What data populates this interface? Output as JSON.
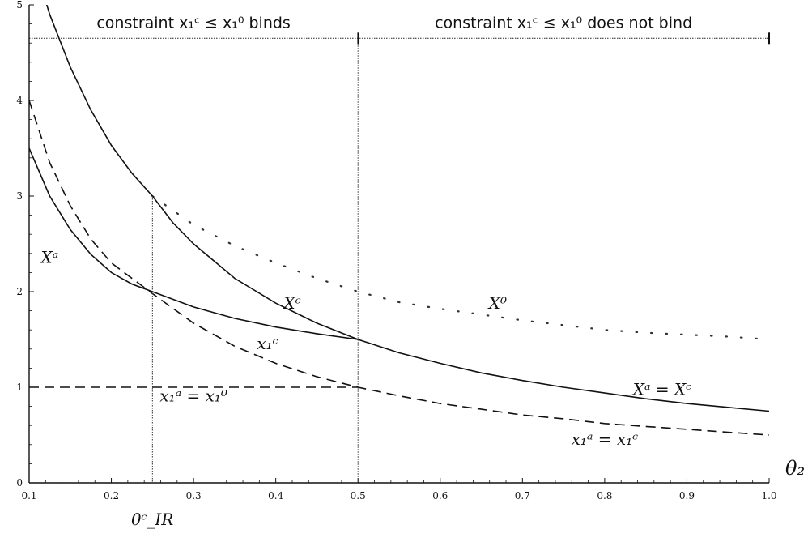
{
  "chart_data": {
    "type": "line",
    "xlabel": "θ₂",
    "ylabel": "",
    "xlim": [
      0.1,
      1.0
    ],
    "ylim": [
      0,
      5
    ],
    "grid": false,
    "x_ticks": [
      0.1,
      0.2,
      0.3,
      0.4,
      0.5,
      0.6,
      0.7,
      0.8,
      0.9,
      1.0
    ],
    "x_tick_labels": [
      "0.1",
      "0.2",
      "0.3",
      "0.4",
      "0.5",
      "0.6",
      "0.7",
      "0.8",
      "0.9",
      "1.0"
    ],
    "y_ticks": [
      0,
      1,
      2,
      3,
      4,
      5
    ],
    "y_tick_labels": [
      "0",
      "1",
      "2",
      "3",
      "4",
      "5"
    ],
    "header": {
      "y": 4.65,
      "left_text": "constraint x₁ᶜ ≤ x₁⁰ binds",
      "right_text": "constraint x₁ᶜ ≤ x₁⁰ does not bind"
    },
    "threshold_lines": [
      {
        "x": 0.25,
        "label": "θᶜ_IR"
      },
      {
        "x": 0.5,
        "label": ""
      }
    ],
    "series": [
      {
        "key": "X0",
        "style": "dotted",
        "x": [
          0.25,
          0.3,
          0.35,
          0.4,
          0.45,
          0.5,
          0.55,
          0.6,
          0.65,
          0.7,
          0.75,
          0.8,
          0.85,
          0.9,
          0.95,
          1.0
        ],
        "y": [
          3.0,
          2.7,
          2.48,
          2.3,
          2.14,
          2.0,
          1.89,
          1.82,
          1.76,
          1.7,
          1.65,
          1.6,
          1.57,
          1.55,
          1.53,
          1.5
        ]
      },
      {
        "key": "Xc",
        "style": "solid",
        "x": [
          0.1,
          0.125,
          0.15,
          0.175,
          0.2,
          0.225,
          0.25,
          0.275,
          0.3,
          0.35,
          0.4,
          0.45,
          0.5,
          0.55,
          0.6,
          0.65,
          0.7,
          0.75,
          0.8,
          0.85,
          0.9,
          0.95,
          1.0
        ],
        "y": [
          5.6,
          4.9,
          4.35,
          3.9,
          3.53,
          3.24,
          3.0,
          2.72,
          2.5,
          2.14,
          1.88,
          1.67,
          1.5,
          1.36,
          1.25,
          1.15,
          1.07,
          1.0,
          0.94,
          0.88,
          0.83,
          0.79,
          0.75
        ]
      },
      {
        "key": "Xa",
        "style": "solid",
        "x": [
          0.1,
          0.125,
          0.15,
          0.175,
          0.2,
          0.225,
          0.25,
          0.3,
          0.35,
          0.4,
          0.45,
          0.5
        ],
        "y": [
          3.5,
          3.0,
          2.65,
          2.39,
          2.2,
          2.08,
          2.0,
          1.84,
          1.72,
          1.63,
          1.56,
          1.5
        ]
      },
      {
        "key": "x1c",
        "style": "dashed",
        "x": [
          0.1,
          0.125,
          0.15,
          0.175,
          0.2,
          0.25,
          0.3,
          0.35,
          0.4,
          0.45,
          0.5,
          0.55,
          0.6,
          0.65,
          0.7,
          0.75,
          0.8,
          0.85,
          0.9,
          0.95,
          1.0
        ],
        "y": [
          4.0,
          3.35,
          2.9,
          2.55,
          2.3,
          1.98,
          1.67,
          1.43,
          1.25,
          1.11,
          1.0,
          0.91,
          0.83,
          0.77,
          0.71,
          0.67,
          0.62,
          0.59,
          0.56,
          0.53,
          0.5
        ]
      },
      {
        "key": "x1a_eq_x10",
        "style": "dashed",
        "x": [
          0.1,
          0.5
        ],
        "y": [
          1.0,
          1.0
        ]
      }
    ],
    "annotations": [
      {
        "text": "Xᵃ",
        "x": 0.125,
        "y": 2.3
      },
      {
        "text": "Xᶜ",
        "x": 0.42,
        "y": 1.82
      },
      {
        "text": "X⁰",
        "x": 0.67,
        "y": 1.82
      },
      {
        "text": "x₁ᶜ",
        "x": 0.39,
        "y": 1.4
      },
      {
        "text": "x₁ᵃ = x₁⁰",
        "x": 0.3,
        "y": 0.85
      },
      {
        "text": "Xᵃ = Xᶜ",
        "x": 0.87,
        "y": 0.92
      },
      {
        "text": "x₁ᵃ = x₁ᶜ",
        "x": 0.8,
        "y": 0.4
      }
    ]
  }
}
